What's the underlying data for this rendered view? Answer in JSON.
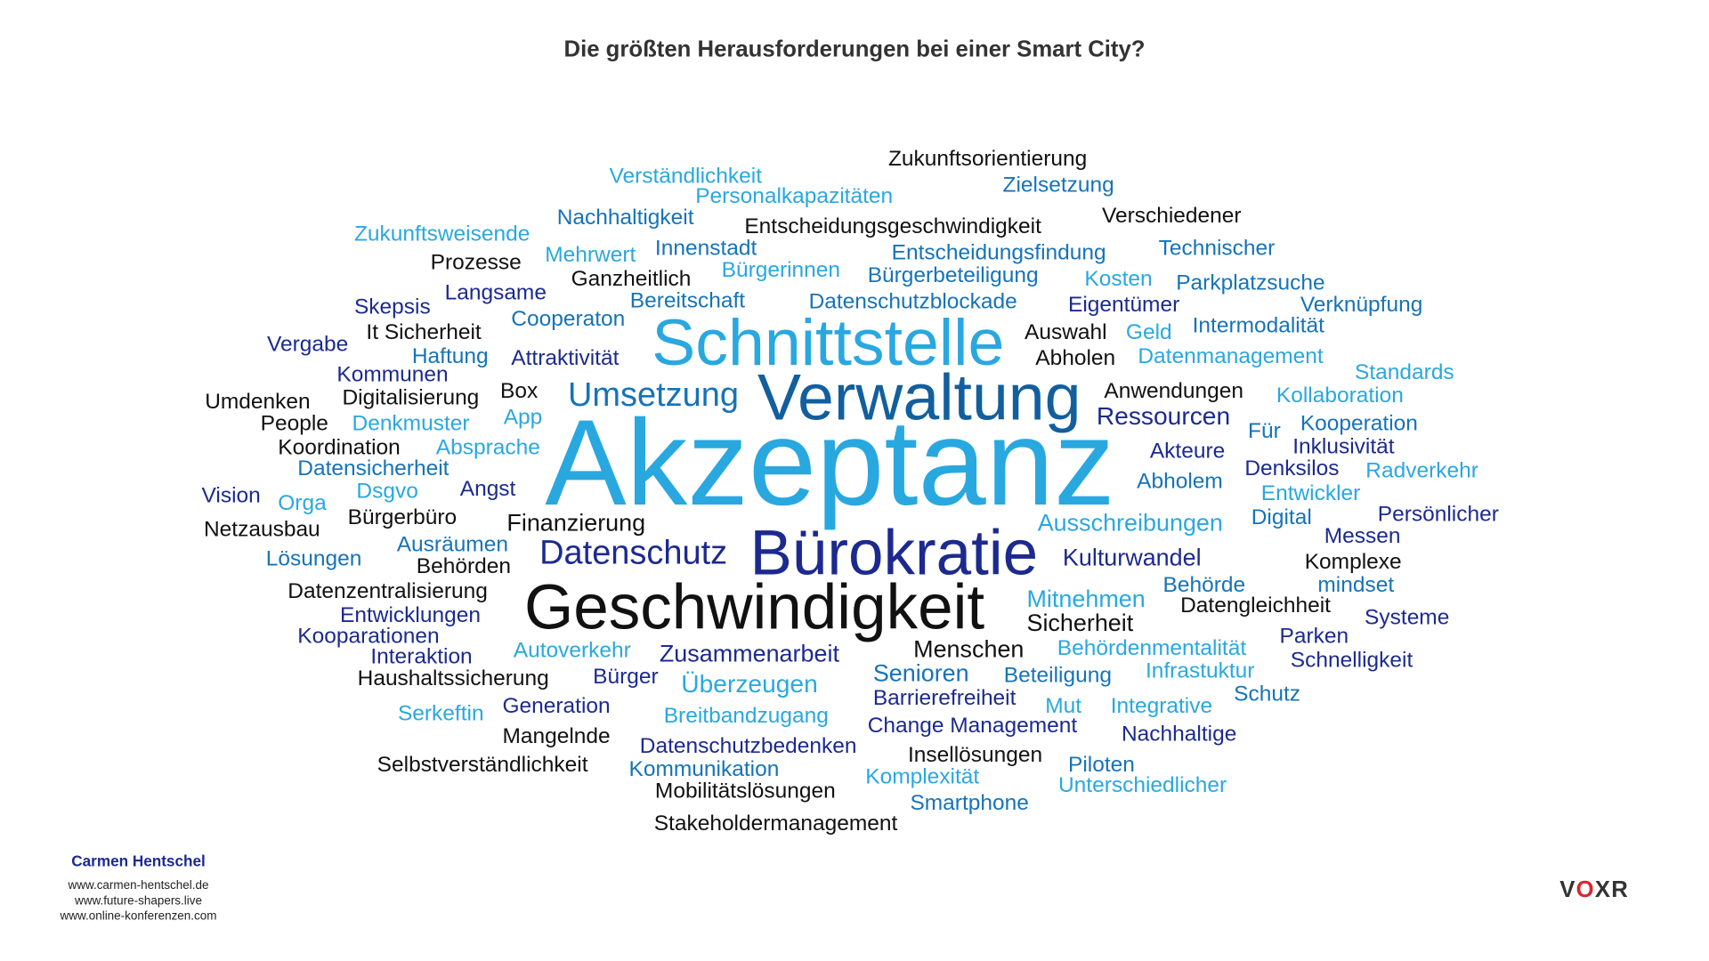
{
  "title": "Die größten Herausforderungen bei einer Smart City?",
  "colors": {
    "black": "#111111",
    "light": "#29a8e0",
    "mid": "#1673b8",
    "dark": "#125f9e",
    "navy": "#1c2a8f"
  },
  "words": [
    {
      "text": "Zukunftsorientierung",
      "color": "black"
    },
    {
      "text": "Verständlichkeit",
      "color": "light"
    },
    {
      "text": "Zielsetzung",
      "color": "mid"
    },
    {
      "text": "Personalkapazitäten",
      "color": "light"
    },
    {
      "text": "Nachhaltigkeit",
      "color": "mid"
    },
    {
      "text": "Verschiedener",
      "color": "black"
    },
    {
      "text": "Zukunftsweisende",
      "color": "light"
    },
    {
      "text": "Entscheidungsgeschwindigkeit",
      "color": "black"
    },
    {
      "text": "Innenstadt",
      "color": "mid"
    },
    {
      "text": "Entscheidungsfindung",
      "color": "mid"
    },
    {
      "text": "Technischer",
      "color": "mid"
    },
    {
      "text": "Mehrwert",
      "color": "light"
    },
    {
      "text": "Prozesse",
      "color": "black"
    },
    {
      "text": "Ganzheitlich",
      "color": "black"
    },
    {
      "text": "Bürgerinnen",
      "color": "light"
    },
    {
      "text": "Bürgerbeteiligung",
      "color": "mid"
    },
    {
      "text": "Kosten",
      "color": "light"
    },
    {
      "text": "Parkplatzsuche",
      "color": "mid"
    },
    {
      "text": "Langsame",
      "color": "navy"
    },
    {
      "text": "Skepsis",
      "color": "navy"
    },
    {
      "text": "Bereitschaft",
      "color": "mid"
    },
    {
      "text": "Datenschutzblockade",
      "color": "mid"
    },
    {
      "text": "Eigentümer",
      "color": "navy"
    },
    {
      "text": "Verknüpfung",
      "color": "mid"
    },
    {
      "text": "Cooperaton",
      "color": "mid"
    },
    {
      "text": "It Sicherheit",
      "color": "black"
    },
    {
      "text": "Auswahl",
      "color": "black"
    },
    {
      "text": "Geld",
      "color": "light"
    },
    {
      "text": "Intermodalität",
      "color": "mid"
    },
    {
      "text": "Schnittstelle",
      "color": "light"
    },
    {
      "text": "Vergabe",
      "color": "navy"
    },
    {
      "text": "Haftung",
      "color": "mid"
    },
    {
      "text": "Attraktivität",
      "color": "navy"
    },
    {
      "text": "Abholen",
      "color": "black"
    },
    {
      "text": "Datenmanagement",
      "color": "light"
    },
    {
      "text": "Standards",
      "color": "light"
    },
    {
      "text": "Kommunen",
      "color": "navy"
    },
    {
      "text": "Verwaltung",
      "color": "dark"
    },
    {
      "text": "Umsetzung",
      "color": "mid"
    },
    {
      "text": "Umdenken",
      "color": "black"
    },
    {
      "text": "Digitalisierung",
      "color": "black"
    },
    {
      "text": "Box",
      "color": "black"
    },
    {
      "text": "Anwendungen",
      "color": "black"
    },
    {
      "text": "Kollaboration",
      "color": "light"
    },
    {
      "text": "Ressourcen",
      "color": "navy"
    },
    {
      "text": "People",
      "color": "black"
    },
    {
      "text": "Denkmuster",
      "color": "light"
    },
    {
      "text": "App",
      "color": "light"
    },
    {
      "text": "Für",
      "color": "mid"
    },
    {
      "text": "Kooperation",
      "color": "mid"
    },
    {
      "text": "Akzeptanz",
      "color": "light"
    },
    {
      "text": "Koordination",
      "color": "black"
    },
    {
      "text": "Absprache",
      "color": "light"
    },
    {
      "text": "Inklusivität",
      "color": "navy"
    },
    {
      "text": "Akteure",
      "color": "navy"
    },
    {
      "text": "Datensicherheit",
      "color": "mid"
    },
    {
      "text": "Denksilos",
      "color": "navy"
    },
    {
      "text": "Radverkehr",
      "color": "light"
    },
    {
      "text": "Vision",
      "color": "navy"
    },
    {
      "text": "Orga",
      "color": "light"
    },
    {
      "text": "Dsgvo",
      "color": "light"
    },
    {
      "text": "Angst",
      "color": "navy"
    },
    {
      "text": "Abholem",
      "color": "mid"
    },
    {
      "text": "Entwickler",
      "color": "light"
    },
    {
      "text": "Bürgerbüro",
      "color": "black"
    },
    {
      "text": "Finanzierung",
      "color": "black"
    },
    {
      "text": "Ausschreibungen",
      "color": "light"
    },
    {
      "text": "Digital",
      "color": "mid"
    },
    {
      "text": "Persönlicher",
      "color": "navy"
    },
    {
      "text": "Netzausbau",
      "color": "black"
    },
    {
      "text": "Messen",
      "color": "navy"
    },
    {
      "text": "Ausräumen",
      "color": "mid"
    },
    {
      "text": "Datenschutz",
      "color": "navy"
    },
    {
      "text": "Bürokratie",
      "color": "navy"
    },
    {
      "text": "Lösungen",
      "color": "mid"
    },
    {
      "text": "Behörden",
      "color": "black"
    },
    {
      "text": "Kulturwandel",
      "color": "navy"
    },
    {
      "text": "Komplexe",
      "color": "black"
    },
    {
      "text": "Datenzentralisierung",
      "color": "black"
    },
    {
      "text": "Behörde",
      "color": "mid"
    },
    {
      "text": "mindset",
      "color": "mid"
    },
    {
      "text": "Geschwindigkeit",
      "color": "black"
    },
    {
      "text": "Mitnehmen",
      "color": "light"
    },
    {
      "text": "Entwicklungen",
      "color": "navy"
    },
    {
      "text": "Datengleichheit",
      "color": "black"
    },
    {
      "text": "Sicherheit",
      "color": "black"
    },
    {
      "text": "Systeme",
      "color": "navy"
    },
    {
      "text": "Kooparationen",
      "color": "navy"
    },
    {
      "text": "Parken",
      "color": "navy"
    },
    {
      "text": "Menschen",
      "color": "black"
    },
    {
      "text": "Autoverkehr",
      "color": "light"
    },
    {
      "text": "Zusammenarbeit",
      "color": "navy"
    },
    {
      "text": "Behördenmentalität",
      "color": "light"
    },
    {
      "text": "Interaktion",
      "color": "navy"
    },
    {
      "text": "Schnelligkeit",
      "color": "navy"
    },
    {
      "text": "Haushaltssicherung",
      "color": "black"
    },
    {
      "text": "Bürger",
      "color": "navy"
    },
    {
      "text": "Überzeugen",
      "color": "light"
    },
    {
      "text": "Senioren",
      "color": "mid"
    },
    {
      "text": "Beteiligung",
      "color": "mid"
    },
    {
      "text": "Infrastuktur",
      "color": "light"
    },
    {
      "text": "Barrierefreiheit",
      "color": "navy"
    },
    {
      "text": "Schutz",
      "color": "mid"
    },
    {
      "text": "Generation",
      "color": "navy"
    },
    {
      "text": "Mut",
      "color": "light"
    },
    {
      "text": "Integrative",
      "color": "light"
    },
    {
      "text": "Serkeftin",
      "color": "light"
    },
    {
      "text": "Breitbandzugang",
      "color": "light"
    },
    {
      "text": "Change Management",
      "color": "navy"
    },
    {
      "text": "Nachhaltige",
      "color": "navy"
    },
    {
      "text": "Mangelnde",
      "color": "black"
    },
    {
      "text": "Datenschutzbedenken",
      "color": "navy"
    },
    {
      "text": "Insellösungen",
      "color": "black"
    },
    {
      "text": "Selbstverständlichkeit",
      "color": "black"
    },
    {
      "text": "Piloten",
      "color": "mid"
    },
    {
      "text": "Kommunikation",
      "color": "mid"
    },
    {
      "text": "Komplexität",
      "color": "light"
    },
    {
      "text": "Unterschiedlicher",
      "color": "light"
    },
    {
      "text": "Mobilitätslösungen",
      "color": "black"
    },
    {
      "text": "Smartphone",
      "color": "mid"
    },
    {
      "text": "Stakeholdermanagement",
      "color": "black"
    }
  ],
  "footer": {
    "author": "Carmen Hentschel",
    "urls": [
      "www.carmen-hentschel.de",
      "www.future-shapers.live",
      "www.online-konferenzen.com"
    ],
    "logo": "VOXR"
  }
}
